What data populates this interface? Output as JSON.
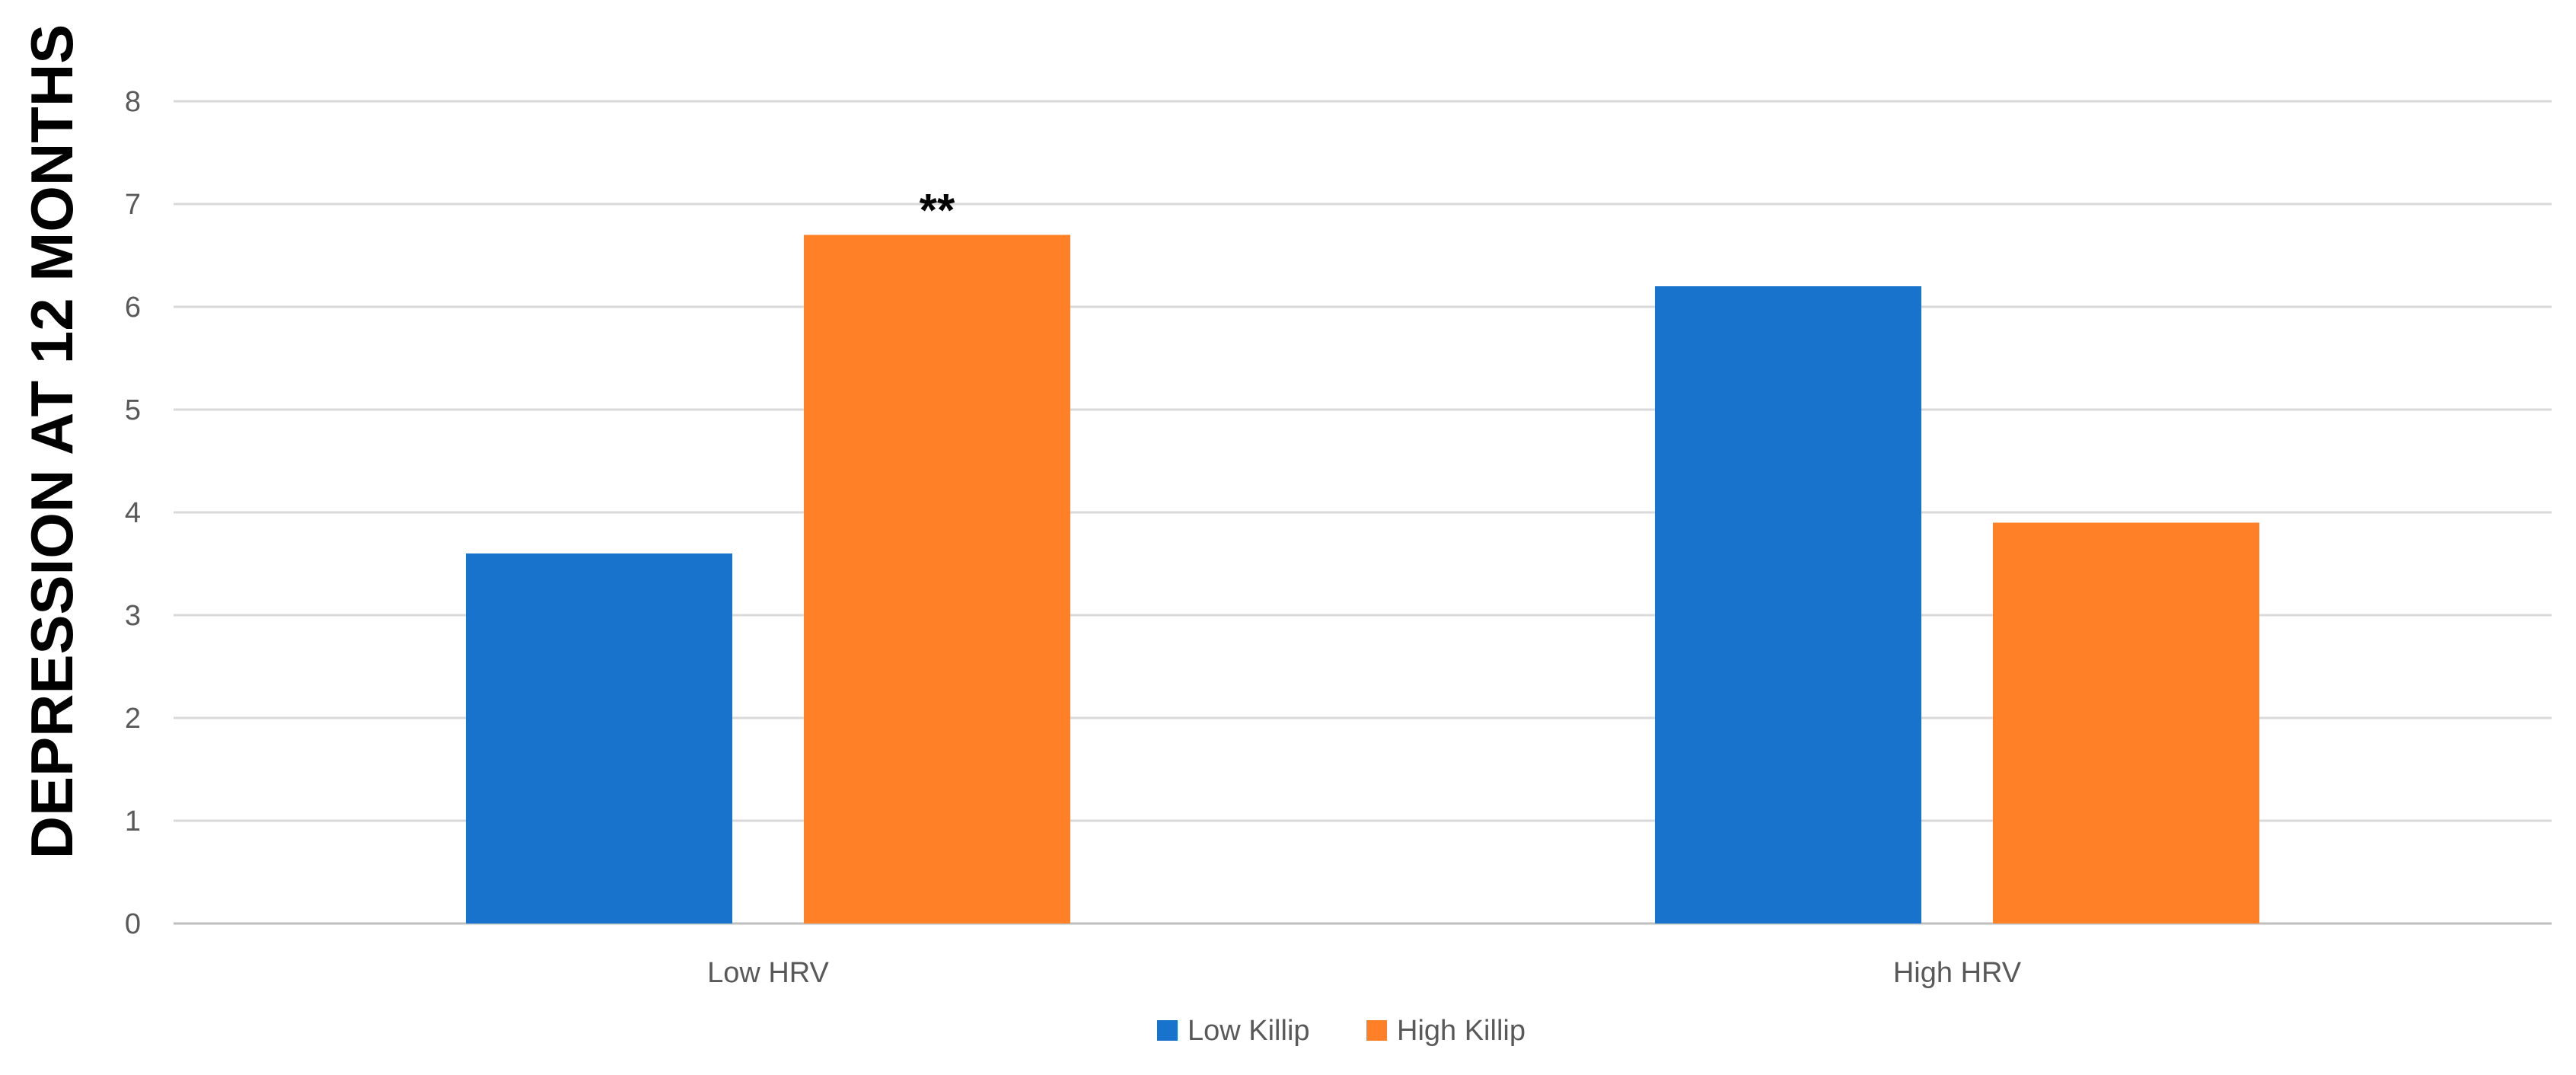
{
  "chart_data": {
    "type": "bar",
    "title": "",
    "xlabel": "",
    "ylabel": "DEPRESSION AT 12 MONTHS",
    "ylim": [
      0,
      8
    ],
    "yticks": [
      0,
      1,
      2,
      3,
      4,
      5,
      6,
      7,
      8
    ],
    "grid": true,
    "legend_position": "bottom",
    "categories": [
      "Low HRV",
      "High HRV"
    ],
    "series": [
      {
        "name": "Low Killip",
        "color": "#1873CC",
        "values": [
          3.6,
          6.2
        ]
      },
      {
        "name": "High Killip",
        "color": "#FF8026",
        "values": [
          6.7,
          3.9
        ]
      }
    ],
    "annotations": [
      {
        "text": "**",
        "category": "Low HRV",
        "series": "High Killip"
      }
    ]
  }
}
